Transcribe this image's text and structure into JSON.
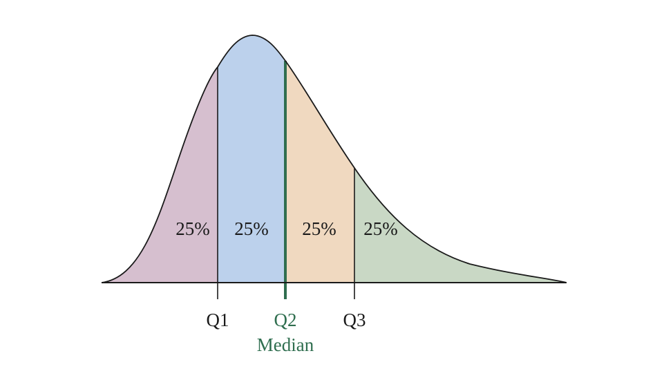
{
  "diagram": {
    "regions": [
      {
        "label": "25%",
        "color": "#d6bfcf"
      },
      {
        "label": "25%",
        "color": "#bcd1ec"
      },
      {
        "label": "25%",
        "color": "#f0d9c0"
      },
      {
        "label": "25%",
        "color": "#c9d8c5"
      }
    ],
    "quartiles": {
      "q1": "Q1",
      "q2": "Q2",
      "q3": "Q3",
      "median": "Median"
    },
    "colors": {
      "curve": "#1a1a1a",
      "text": "#1a1a1a",
      "median": "#2f6e4f"
    }
  }
}
